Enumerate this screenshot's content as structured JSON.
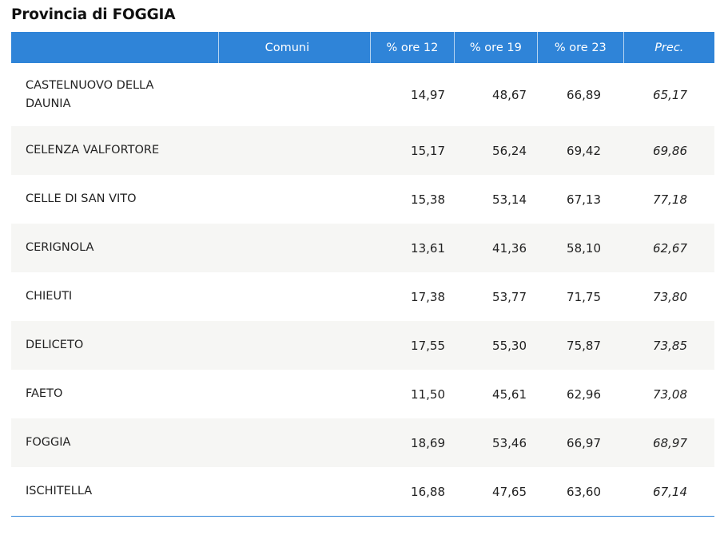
{
  "title": "Provincia di FOGGIA",
  "columns": {
    "comuni": "Comuni",
    "ore12": "% ore 12",
    "ore19": "% ore 19",
    "ore23": "% ore 23",
    "prec": "Prec."
  },
  "rows": [
    {
      "name": "CASTELNUOVO DELLA DAUNIA",
      "ore12": "14,97",
      "ore19": "48,67",
      "ore23": "66,89",
      "prec": "65,17"
    },
    {
      "name": "CELENZA VALFORTORE",
      "ore12": "15,17",
      "ore19": "56,24",
      "ore23": "69,42",
      "prec": "69,86"
    },
    {
      "name": "CELLE DI SAN VITO",
      "ore12": "15,38",
      "ore19": "53,14",
      "ore23": "67,13",
      "prec": "77,18"
    },
    {
      "name": "CERIGNOLA",
      "ore12": "13,61",
      "ore19": "41,36",
      "ore23": "58,10",
      "prec": "62,67"
    },
    {
      "name": "CHIEUTI",
      "ore12": "17,38",
      "ore19": "53,77",
      "ore23": "71,75",
      "prec": "73,80"
    },
    {
      "name": "DELICETO",
      "ore12": "17,55",
      "ore19": "55,30",
      "ore23": "75,87",
      "prec": "73,85"
    },
    {
      "name": "FAETO",
      "ore12": "11,50",
      "ore19": "45,61",
      "ore23": "62,96",
      "prec": "73,08"
    },
    {
      "name": "FOGGIA",
      "ore12": "18,69",
      "ore19": "53,46",
      "ore23": "66,97",
      "prec": "68,97"
    },
    {
      "name": "ISCHITELLA",
      "ore12": "16,88",
      "ore19": "47,65",
      "ore23": "63,60",
      "prec": "67,14"
    }
  ],
  "colors": {
    "header_bg": "#2f84d8",
    "alt_row_bg": "#f6f6f4"
  }
}
